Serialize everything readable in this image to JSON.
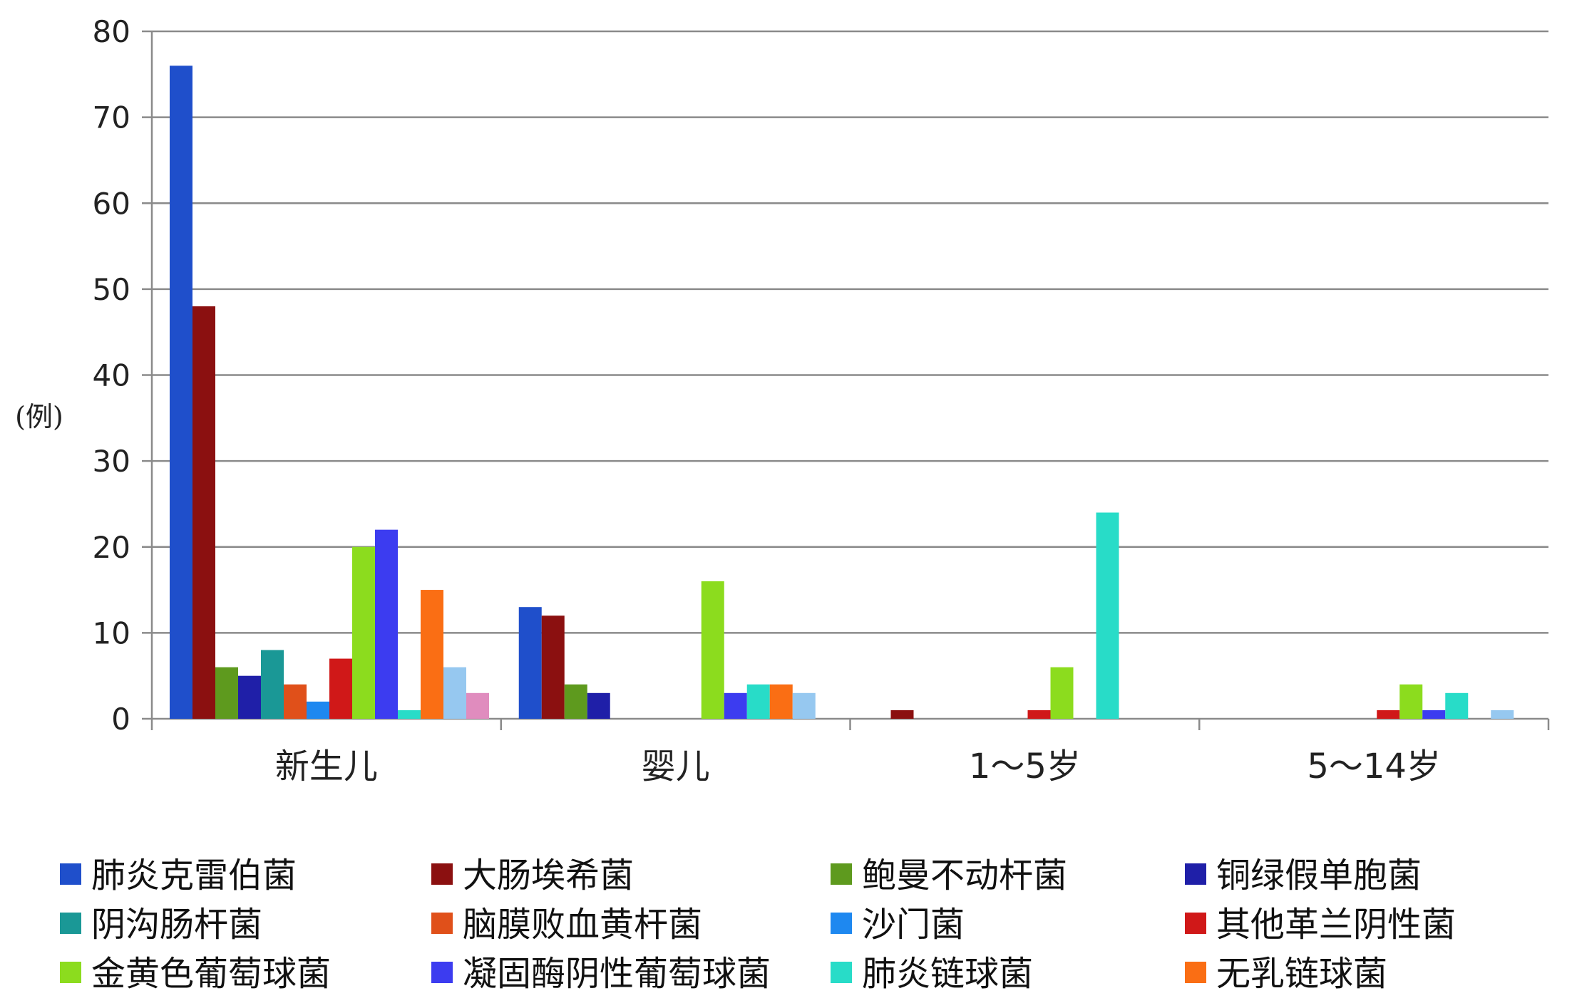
{
  "chart_data": {
    "type": "bar",
    "ylabel": "(例)",
    "ylim": [
      0,
      80
    ],
    "yticks": [
      0,
      10,
      20,
      30,
      40,
      50,
      60,
      70,
      80
    ],
    "grid": true,
    "legend_position": "bottom",
    "categories": [
      "新生儿",
      "婴儿",
      "1～5岁",
      "5～14岁"
    ],
    "series": [
      {
        "name": "肺炎克雷伯菌",
        "color": "#1F4FCB",
        "values": [
          76,
          13,
          0,
          0
        ]
      },
      {
        "name": "大肠埃希菌",
        "color": "#8B1010",
        "values": [
          48,
          12,
          1,
          0
        ]
      },
      {
        "name": "鲍曼不动杆菌",
        "color": "#5E9A1E",
        "values": [
          6,
          4,
          0,
          0
        ]
      },
      {
        "name": "铜绿假单胞菌",
        "color": "#1F1FA8",
        "values": [
          5,
          3,
          0,
          0
        ]
      },
      {
        "name": "阴沟肠杆菌",
        "color": "#1A9896",
        "values": [
          8,
          0,
          0,
          0
        ]
      },
      {
        "name": "脑膜败血黄杆菌",
        "color": "#E0501A",
        "values": [
          4,
          0,
          0,
          0
        ]
      },
      {
        "name": "沙门菌",
        "color": "#1E88F0",
        "values": [
          2,
          0,
          0,
          0
        ]
      },
      {
        "name": "其他革兰阴性菌",
        "color": "#D01818",
        "values": [
          7,
          0,
          1,
          1
        ]
      },
      {
        "name": "金黄色葡萄球菌",
        "color": "#8CDC1E",
        "values": [
          20,
          16,
          6,
          4
        ]
      },
      {
        "name": "凝固酶阴性葡萄球菌",
        "color": "#3C3CF0",
        "values": [
          22,
          3,
          0,
          1
        ]
      },
      {
        "name": "肺炎链球菌",
        "color": "#28DCC8",
        "values": [
          1,
          4,
          24,
          3
        ]
      },
      {
        "name": "无乳链球菌",
        "color": "#FA6E14",
        "values": [
          15,
          4,
          0,
          0
        ]
      },
      {
        "name": "",
        "color": "#96C8F0",
        "values": [
          6,
          3,
          0,
          1
        ]
      },
      {
        "name": "",
        "color": "#E08CBE",
        "values": [
          3,
          0,
          0,
          0
        ]
      }
    ]
  }
}
